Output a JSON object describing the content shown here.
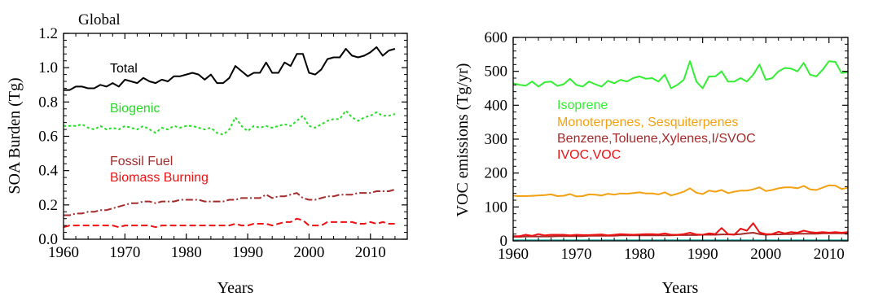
{
  "chart_data": [
    {
      "type": "line",
      "title": "Global",
      "xlabel": "Years",
      "ylabel": "SOA Burden (Tg)",
      "xlim": [
        1960,
        2016
      ],
      "ylim": [
        0.0,
        1.2
      ],
      "xticks": [
        "1960",
        "1970",
        "1980",
        "1990",
        "2000",
        "2010"
      ],
      "yticks": [
        "0.0",
        "0.2",
        "0.4",
        "0.6",
        "0.8",
        "1.0",
        "1.2"
      ],
      "x": [
        1960,
        1961,
        1962,
        1963,
        1964,
        1965,
        1966,
        1967,
        1968,
        1969,
        1970,
        1971,
        1972,
        1973,
        1974,
        1975,
        1976,
        1977,
        1978,
        1979,
        1980,
        1981,
        1982,
        1983,
        1984,
        1985,
        1986,
        1987,
        1988,
        1989,
        1990,
        1991,
        1992,
        1993,
        1994,
        1995,
        1996,
        1997,
        1998,
        1999,
        2000,
        2001,
        2002,
        2003,
        2004,
        2005,
        2006,
        2007,
        2008,
        2009,
        2010,
        2011,
        2012,
        2013,
        2014
      ],
      "series": [
        {
          "name": "Total",
          "color": "#000000",
          "dash": "solid",
          "values": [
            0.87,
            0.87,
            0.89,
            0.89,
            0.88,
            0.88,
            0.9,
            0.89,
            0.91,
            0.89,
            0.93,
            0.92,
            0.91,
            0.94,
            0.92,
            0.91,
            0.93,
            0.92,
            0.95,
            0.95,
            0.96,
            0.97,
            0.96,
            0.93,
            0.96,
            0.91,
            0.91,
            0.94,
            1.01,
            0.98,
            0.95,
            0.97,
            0.97,
            1.03,
            0.97,
            0.97,
            1.03,
            1.01,
            1.08,
            1.08,
            0.97,
            0.96,
            0.99,
            1.05,
            1.06,
            1.06,
            1.11,
            1.07,
            1.06,
            1.07,
            1.09,
            1.12,
            1.07,
            1.1,
            1.11
          ]
        },
        {
          "name": "Biogenic",
          "color": "#22dd22",
          "dash": "dotted",
          "values": [
            0.66,
            0.66,
            0.66,
            0.67,
            0.65,
            0.64,
            0.66,
            0.64,
            0.65,
            0.64,
            0.66,
            0.65,
            0.64,
            0.66,
            0.64,
            0.62,
            0.65,
            0.64,
            0.66,
            0.65,
            0.66,
            0.66,
            0.65,
            0.64,
            0.65,
            0.62,
            0.61,
            0.64,
            0.71,
            0.66,
            0.63,
            0.66,
            0.65,
            0.66,
            0.65,
            0.66,
            0.67,
            0.66,
            0.69,
            0.72,
            0.66,
            0.65,
            0.67,
            0.69,
            0.7,
            0.7,
            0.75,
            0.71,
            0.69,
            0.71,
            0.72,
            0.74,
            0.72,
            0.72,
            0.73
          ]
        },
        {
          "name": "Fossil Fuel",
          "color": "#a52a2a",
          "dash": "dashdot",
          "values": [
            0.14,
            0.14,
            0.15,
            0.15,
            0.16,
            0.16,
            0.17,
            0.17,
            0.18,
            0.19,
            0.2,
            0.21,
            0.21,
            0.22,
            0.22,
            0.21,
            0.22,
            0.22,
            0.22,
            0.23,
            0.23,
            0.23,
            0.23,
            0.22,
            0.22,
            0.22,
            0.22,
            0.23,
            0.23,
            0.24,
            0.24,
            0.24,
            0.24,
            0.26,
            0.24,
            0.25,
            0.25,
            0.26,
            0.27,
            0.24,
            0.23,
            0.23,
            0.24,
            0.25,
            0.25,
            0.26,
            0.26,
            0.26,
            0.27,
            0.27,
            0.27,
            0.28,
            0.28,
            0.28,
            0.29
          ]
        },
        {
          "name": "Biomass Burning",
          "color": "#ee1111",
          "dash": "dashed",
          "values": [
            0.07,
            0.08,
            0.08,
            0.08,
            0.08,
            0.08,
            0.08,
            0.08,
            0.08,
            0.07,
            0.08,
            0.08,
            0.08,
            0.08,
            0.08,
            0.07,
            0.08,
            0.08,
            0.08,
            0.08,
            0.08,
            0.08,
            0.08,
            0.08,
            0.08,
            0.08,
            0.08,
            0.08,
            0.09,
            0.08,
            0.08,
            0.09,
            0.09,
            0.09,
            0.08,
            0.09,
            0.1,
            0.1,
            0.12,
            0.11,
            0.08,
            0.08,
            0.08,
            0.1,
            0.1,
            0.1,
            0.1,
            0.1,
            0.09,
            0.09,
            0.1,
            0.09,
            0.1,
            0.09,
            0.09
          ]
        }
      ]
    },
    {
      "type": "line",
      "xlabel": "Years",
      "ylabel": "VOC emissions (Tg/yr)",
      "xlim": [
        1960,
        2013
      ],
      "ylim": [
        0,
        600
      ],
      "xticks": [
        "1960",
        "1970",
        "1980",
        "1990",
        "2000",
        "2010"
      ],
      "yticks": [
        "0",
        "100",
        "200",
        "300",
        "400",
        "500",
        "600"
      ],
      "x": [
        1960,
        1961,
        1962,
        1963,
        1964,
        1965,
        1966,
        1967,
        1968,
        1969,
        1970,
        1971,
        1972,
        1973,
        1974,
        1975,
        1976,
        1977,
        1978,
        1979,
        1980,
        1981,
        1982,
        1983,
        1984,
        1985,
        1986,
        1987,
        1988,
        1989,
        1990,
        1991,
        1992,
        1993,
        1994,
        1995,
        1996,
        1997,
        1998,
        1999,
        2000,
        2001,
        2002,
        2003,
        2004,
        2005,
        2006,
        2007,
        2008,
        2009,
        2010,
        2011,
        2012,
        2013
      ],
      "series": [
        {
          "name": "Isoprene",
          "color": "#33ee33",
          "values": [
            465,
            460,
            458,
            470,
            455,
            468,
            470,
            457,
            462,
            478,
            460,
            455,
            470,
            462,
            455,
            472,
            465,
            475,
            470,
            480,
            485,
            478,
            480,
            470,
            490,
            450,
            460,
            475,
            530,
            470,
            450,
            485,
            485,
            500,
            470,
            470,
            480,
            470,
            490,
            520,
            475,
            480,
            500,
            510,
            508,
            500,
            525,
            490,
            485,
            505,
            530,
            528,
            495,
            498
          ]
        },
        {
          "name": "Monoterpenes, Sesquiterpenes",
          "color": "#f5a010",
          "values": [
            133,
            132,
            132,
            133,
            134,
            135,
            137,
            132,
            133,
            138,
            131,
            132,
            137,
            136,
            134,
            139,
            136,
            140,
            139,
            141,
            143,
            140,
            140,
            137,
            143,
            134,
            139,
            145,
            155,
            142,
            138,
            148,
            145,
            150,
            141,
            145,
            148,
            148,
            152,
            158,
            147,
            150,
            155,
            158,
            158,
            155,
            162,
            152,
            150,
            157,
            164,
            163,
            153,
            157
          ]
        },
        {
          "name": "Benzene,Toluene,Xylenes,I/SVOC",
          "color": "#a52a2a",
          "values": [
            12,
            12,
            13,
            13,
            13,
            13,
            13,
            14,
            14,
            14,
            14,
            14,
            15,
            15,
            15,
            15,
            15,
            16,
            16,
            16,
            16,
            16,
            16,
            16,
            16,
            16,
            17,
            17,
            17,
            17,
            18,
            18,
            18,
            19,
            19,
            19,
            20,
            22,
            24,
            20,
            18,
            19,
            19,
            20,
            20,
            21,
            21,
            21,
            21,
            22,
            22,
            22,
            22,
            22
          ]
        },
        {
          "name": "IVOC,VOC",
          "color": "#ee1111",
          "values": [
            14,
            14,
            18,
            15,
            20,
            16,
            18,
            18,
            18,
            16,
            18,
            17,
            17,
            18,
            19,
            16,
            18,
            20,
            19,
            18,
            19,
            20,
            20,
            19,
            22,
            18,
            18,
            20,
            24,
            19,
            18,
            22,
            20,
            38,
            20,
            18,
            36,
            30,
            52,
            25,
            20,
            20,
            27,
            22,
            26,
            24,
            30,
            26,
            24,
            26,
            24,
            26,
            24,
            26
          ]
        },
        {
          "name": "",
          "color": "#20b2aa",
          "values": [
            2,
            2,
            2,
            2,
            2,
            2,
            2,
            2,
            2,
            2,
            2,
            2,
            2,
            2,
            2,
            2,
            2,
            2,
            2,
            2,
            2,
            2,
            2,
            2,
            2,
            2,
            2,
            2,
            2,
            2,
            2,
            2,
            2,
            2,
            2,
            2,
            2,
            2,
            2,
            2,
            2,
            2,
            2,
            2,
            2,
            2,
            2,
            2,
            2,
            2,
            2,
            2,
            2,
            2
          ]
        }
      ]
    }
  ]
}
